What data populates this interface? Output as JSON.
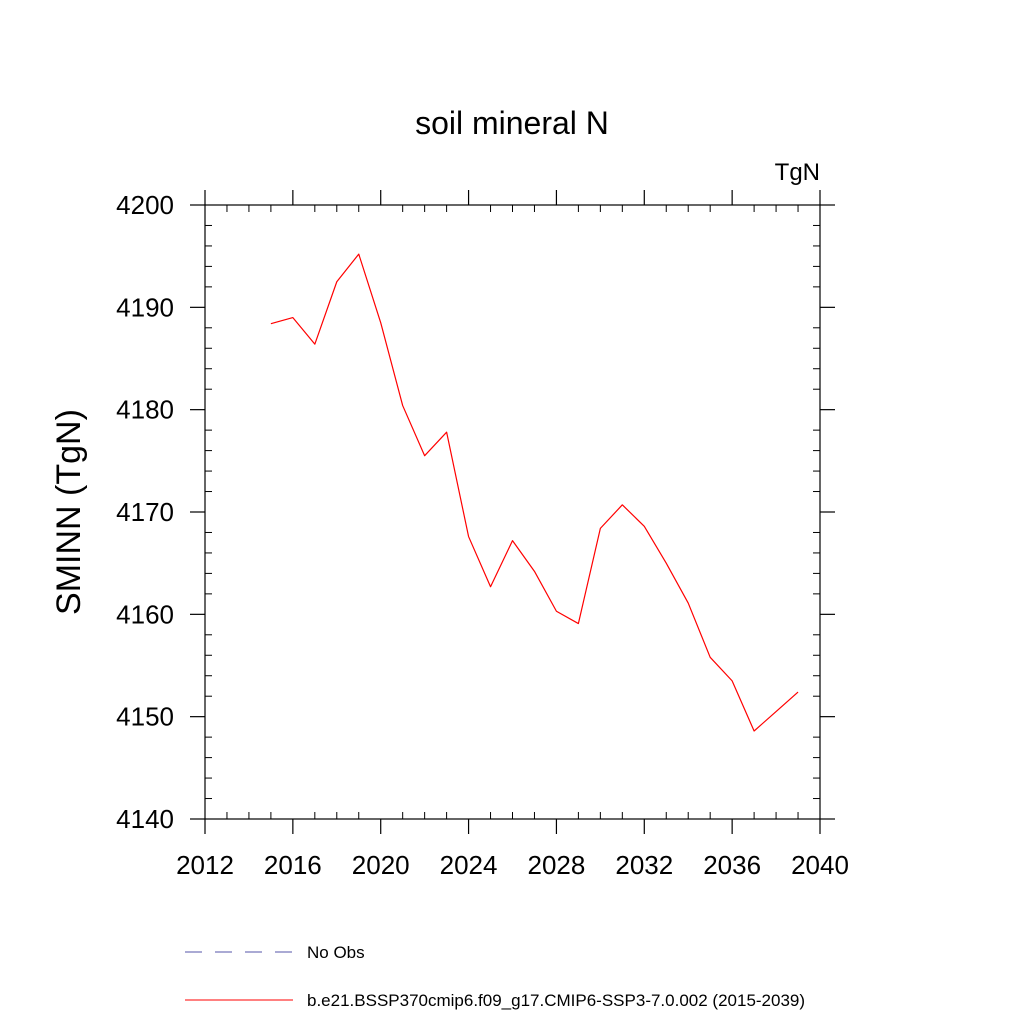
{
  "chart_data": {
    "type": "line",
    "title": "soil mineral N",
    "units_label": "TgN",
    "ylabel": "SMINN  (TgN)",
    "xlabel": "",
    "xlim": [
      2012,
      2040
    ],
    "ylim": [
      4140,
      4200
    ],
    "x_ticks": [
      2012,
      2016,
      2020,
      2024,
      2028,
      2032,
      2036,
      2040
    ],
    "y_ticks": [
      4140,
      4150,
      4160,
      4170,
      4180,
      4190,
      4200
    ],
    "x_minor_step": 1,
    "y_minor_step": 2,
    "grid": false,
    "legend_position": "bottom",
    "series": [
      {
        "name": "b.e21.BSSP370cmip6.f09_g17.CMIP6-SSP3-7.0.002 (2015-2039)",
        "color": "#ff0000",
        "dash": "solid",
        "x": [
          2015,
          2016,
          2017,
          2018,
          2019,
          2020,
          2021,
          2022,
          2023,
          2024,
          2025,
          2026,
          2027,
          2028,
          2029,
          2030,
          2031,
          2032,
          2033,
          2034,
          2035,
          2036,
          2037,
          2038,
          2039
        ],
        "y": [
          4188.4,
          4189.0,
          4186.4,
          4192.5,
          4195.2,
          4188.5,
          4180.4,
          4175.5,
          4177.8,
          4167.6,
          4162.7,
          4167.2,
          4164.2,
          4160.3,
          4159.1,
          4168.4,
          4170.7,
          4168.6,
          4165.0,
          4161.1,
          4155.8,
          4153.5,
          4148.6,
          4150.5,
          4152.4
        ]
      }
    ],
    "legend": [
      {
        "label": "No Obs",
        "color": "#5555aa",
        "dash": "dashed"
      },
      {
        "label": "b.e21.BSSP370cmip6.f09_g17.CMIP6-SSP3-7.0.002 (2015-2039)",
        "color": "#ff0000",
        "dash": "solid"
      }
    ]
  }
}
